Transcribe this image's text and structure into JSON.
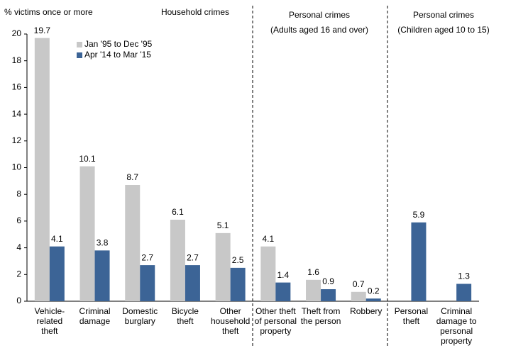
{
  "chart_data": {
    "type": "bar",
    "y_label": "% victims once or more",
    "sections": [
      {
        "title": "Household crimes"
      },
      {
        "title": "Personal crimes",
        "subtitle": "(Adults aged 16 and over)"
      },
      {
        "title": "Personal crimes",
        "subtitle": "(Children aged 10 to 15)"
      }
    ],
    "categories": [
      "Vehicle-\nrelated\ntheft",
      "Criminal\ndamage",
      "Domestic\nburglary",
      "Bicycle\ntheft",
      "Other\nhousehold\ntheft",
      "Other theft\nof personal\nproperty",
      "Theft from\nthe person",
      "Robbery",
      "Personal\ntheft",
      "Criminal\ndamage to\npersonal\nproperty"
    ],
    "series": [
      {
        "name": "Jan '95 to Dec '95",
        "color": "#c8c8c8",
        "values": [
          19.7,
          10.1,
          8.7,
          6.1,
          5.1,
          4.1,
          1.6,
          0.7,
          null,
          null
        ]
      },
      {
        "name": "Apr '14 to Mar '15",
        "color": "#3c6496",
        "values": [
          4.1,
          3.8,
          2.7,
          2.7,
          2.5,
          1.4,
          0.9,
          0.2,
          5.9,
          1.3
        ]
      }
    ],
    "ylim": [
      0,
      20
    ],
    "yticks": [
      0,
      2,
      4,
      6,
      8,
      10,
      12,
      14,
      16,
      18,
      20
    ]
  }
}
